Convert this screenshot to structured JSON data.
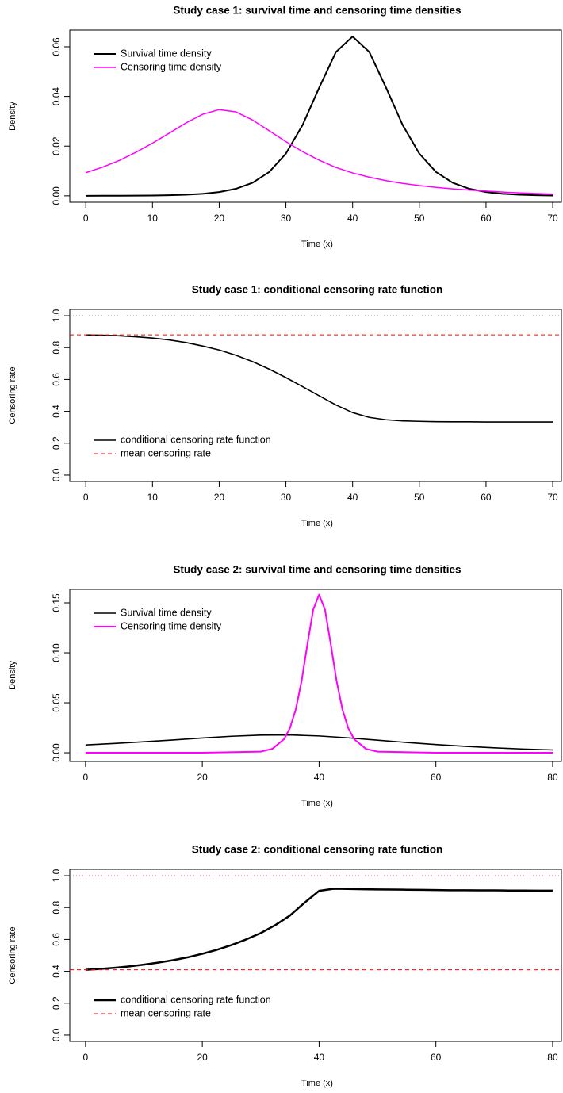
{
  "chart_data": [
    {
      "type": "line",
      "title": "Study case 1:  survival time and censoring time densities",
      "xlabel": "Time (x)",
      "ylabel": "Density",
      "x": [
        0,
        2.5,
        5,
        7.5,
        10,
        12.5,
        15,
        17.5,
        20,
        22.5,
        25,
        27.5,
        30,
        32.5,
        35,
        37.5,
        40,
        42.5,
        45,
        47.5,
        50,
        52.5,
        55,
        57.5,
        60,
        62.5,
        65,
        67.5,
        70
      ],
      "series": [
        {
          "name": "Survival time density",
          "color": "#000000",
          "width": 2,
          "values": [
            1e-05,
            2e-05,
            3e-05,
            6e-05,
            0.00012,
            0.00022,
            0.00042,
            0.0008,
            0.0015,
            0.00282,
            0.00525,
            0.00959,
            0.017,
            0.0285,
            0.0436,
            0.0579,
            0.0641,
            0.0579,
            0.0436,
            0.0285,
            0.017,
            0.00959,
            0.00525,
            0.00282,
            0.0015,
            0.0008,
            0.00042,
            0.00022,
            0.00012
          ]
        },
        {
          "name": "Censoring time density",
          "color": "#ff00ff",
          "width": 1.5,
          "values": [
            0.0093,
            0.0115,
            0.0142,
            0.0175,
            0.0212,
            0.0252,
            0.0293,
            0.0328,
            0.0347,
            0.0338,
            0.0305,
            0.0262,
            0.0218,
            0.0178,
            0.0143,
            0.0114,
            0.0092,
            0.0075,
            0.0061,
            0.005,
            0.0041,
            0.0034,
            0.0028,
            0.0023,
            0.0019,
            0.0015,
            0.0012,
            0.0009,
            0.0007
          ]
        }
      ],
      "xlim": [
        -2.4,
        71.3
      ],
      "xticks": [
        0,
        10,
        20,
        30,
        40,
        50,
        60,
        70
      ],
      "ylim": [
        -0.0026,
        0.0667
      ],
      "yticks": [
        {
          "value": 0,
          "label": "0.00"
        },
        0.02,
        0.04,
        0.06
      ],
      "legend": "topleft"
    },
    {
      "type": "line",
      "title": "Study case 1:  conditional censoring rate function",
      "xlabel": "Time (x)",
      "ylabel": "Censoring rate",
      "x": [
        0,
        2.5,
        5,
        7.5,
        10,
        12.5,
        15,
        17.5,
        20,
        22.5,
        25,
        27.5,
        30,
        32.5,
        35,
        37.5,
        40,
        42.5,
        45,
        47.5,
        50,
        52.5,
        55,
        57.5,
        60,
        62.5,
        65,
        67.5,
        70
      ],
      "series": [
        {
          "name": "conditional censoring rate function",
          "color": "#000000",
          "width": 1.6,
          "values": [
            0.88,
            0.878,
            0.874,
            0.868,
            0.86,
            0.848,
            0.832,
            0.81,
            0.785,
            0.752,
            0.712,
            0.665,
            0.612,
            0.555,
            0.497,
            0.44,
            0.392,
            0.362,
            0.347,
            0.34,
            0.337,
            0.335,
            0.334,
            0.334,
            0.333,
            0.333,
            0.333,
            0.333,
            0.333
          ]
        },
        {
          "name": "mean censoring rate",
          "color": "#ff0000",
          "width": 1,
          "dash": "dashed",
          "hline": 0.88
        }
      ],
      "ref_line": {
        "value": 1,
        "color": "#999999"
      },
      "xlim": [
        -2.4,
        71.3
      ],
      "xticks": [
        0,
        10,
        20,
        30,
        40,
        50,
        60,
        70
      ],
      "ylim": [
        -0.04,
        1.04
      ],
      "yticks": [
        {
          "value": 0,
          "label": "0.0"
        },
        0.2,
        0.4,
        0.6,
        0.8,
        {
          "value": 1,
          "label": "1.0"
        }
      ],
      "legend": "bottomleft"
    },
    {
      "type": "line",
      "title": "Study case 2:  survival time and censoring time densities",
      "xlabel": "Time (x)",
      "ylabel": "Density",
      "series": [
        {
          "name": "Survival time density",
          "color": "#000000",
          "width": 1.6,
          "x": [
            0,
            5,
            10,
            15,
            20,
            25,
            30,
            35,
            40,
            45,
            50,
            55,
            60,
            65,
            70,
            75,
            80
          ],
          "values": [
            0.0078,
            0.0093,
            0.011,
            0.0128,
            0.0148,
            0.0165,
            0.0176,
            0.0178,
            0.0168,
            0.0149,
            0.0126,
            0.0103,
            0.0082,
            0.0064,
            0.0049,
            0.0037,
            0.0028
          ]
        },
        {
          "name": "Censoring time density",
          "color": "#ff00ff",
          "width": 2,
          "x": [
            0,
            10,
            20,
            30,
            32,
            34,
            35,
            36,
            37,
            38,
            39,
            40,
            41,
            42,
            43,
            44,
            45,
            46,
            48,
            50,
            60,
            70,
            80
          ],
          "values": [
            0,
            0,
            2e-06,
            0.00112,
            0.00395,
            0.0136,
            0.0246,
            0.0432,
            0.0717,
            0.1086,
            0.1434,
            0.1582,
            0.1434,
            0.1086,
            0.0717,
            0.0432,
            0.0246,
            0.0136,
            0.00395,
            0.00112,
            2e-06,
            0,
            0
          ]
        }
      ],
      "xlim": [
        -2.7,
        81.5
      ],
      "xticks": [
        0,
        20,
        40,
        60,
        80
      ],
      "ylim": [
        -0.0087,
        0.1635
      ],
      "yticks": [
        {
          "value": 0,
          "label": "0.00"
        },
        0.05,
        {
          "value": 0.1,
          "label": "0.10"
        },
        0.15
      ],
      "legend": "topleft"
    },
    {
      "type": "line",
      "title": "Study case 2:  conditional censoring rate function",
      "xlabel": "Time (x)",
      "ylabel": "Censoring rate",
      "x": [
        0,
        2.5,
        5,
        7.5,
        10,
        12.5,
        15,
        17.5,
        20,
        22.5,
        25,
        27.5,
        30,
        32.5,
        35,
        37.5,
        40,
        42.5,
        45,
        47.5,
        50,
        52.5,
        55,
        57.5,
        60,
        62.5,
        65,
        67.5,
        70,
        72.5,
        75,
        77.5,
        80
      ],
      "series": [
        {
          "name": "conditional censoring rate function",
          "color": "#000000",
          "width": 2.5,
          "values": [
            0.41,
            0.415,
            0.422,
            0.431,
            0.442,
            0.455,
            0.47,
            0.488,
            0.51,
            0.535,
            0.565,
            0.6,
            0.64,
            0.69,
            0.75,
            0.83,
            0.905,
            0.918,
            0.917,
            0.915,
            0.914,
            0.913,
            0.912,
            0.911,
            0.91,
            0.909,
            0.909,
            0.908,
            0.908,
            0.907,
            0.907,
            0.906,
            0.906
          ]
        },
        {
          "name": "mean censoring rate",
          "color": "#ff0000",
          "width": 1,
          "dash": "dashed",
          "hline": 0.41
        }
      ],
      "ref_line": {
        "value": 1,
        "color": "#ff6666"
      },
      "xlim": [
        -2.7,
        81.5
      ],
      "xticks": [
        0,
        20,
        40,
        60,
        80
      ],
      "ylim": [
        -0.04,
        1.04
      ],
      "yticks": [
        {
          "value": 0,
          "label": "0.0"
        },
        0.2,
        0.4,
        0.6,
        0.8,
        {
          "value": 1,
          "label": "1.0"
        }
      ],
      "legend": "bottomleft"
    }
  ]
}
